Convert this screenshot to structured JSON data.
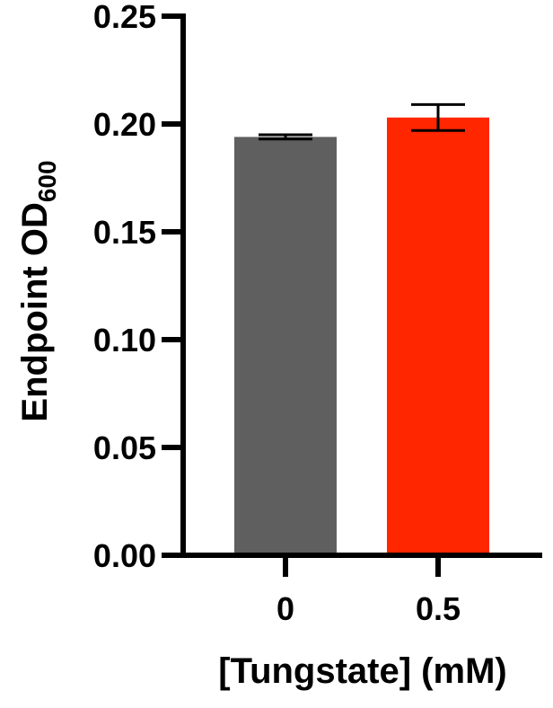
{
  "chart_data": {
    "type": "bar",
    "categories": [
      "0",
      "0.5"
    ],
    "values": [
      0.194,
      0.203
    ],
    "errors": [
      0.001,
      0.006
    ],
    "colors": [
      "#5f5f5f",
      "#ff2600"
    ],
    "title": "",
    "xlabel": "[Tungstate] (mM)",
    "ylabel": {
      "main": "Endpoint OD",
      "subscript": "600"
    },
    "ylim": [
      0,
      0.25
    ],
    "yticks": [
      "0.00",
      "0.05",
      "0.10",
      "0.15",
      "0.20",
      "0.25"
    ],
    "grid": false,
    "legend": "none"
  }
}
